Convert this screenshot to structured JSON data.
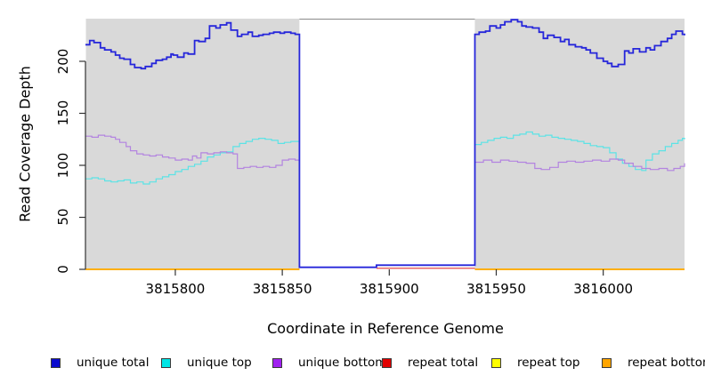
{
  "chart_data": {
    "type": "line",
    "subtype": "step-coverage",
    "title": "",
    "xlabel": "Coordinate in Reference Genome",
    "ylabel": "Read Coverage Depth",
    "xlim": [
      3815758,
      3816038
    ],
    "ylim": [
      0,
      241
    ],
    "xticks": [
      3815800,
      3815850,
      3815900,
      3815950,
      3816000
    ],
    "yticks": [
      0,
      50,
      100,
      150,
      200
    ],
    "grid": false,
    "legend_position": "bottom",
    "plot_background": "#D9D9D9",
    "no_data_region": {
      "start": 3815858,
      "end": 3815940,
      "fill": "#FFFFFF",
      "border": "#8A8A8A"
    },
    "axis_color": "#333333",
    "draw_order": [
      "repeat top",
      "repeat bottom",
      "unique top",
      "unique bottom",
      "unique total",
      "repeat total"
    ],
    "series": [
      {
        "name": "unique total",
        "color": "#2626DA",
        "legend_color": "#0A0ACD",
        "width": 1.8,
        "segments": [
          [
            [
              3815758,
              216
            ],
            [
              3815760,
              220
            ],
            [
              3815762,
              218
            ],
            [
              3815765,
              213
            ],
            [
              3815767,
              211
            ],
            [
              3815770,
              209
            ],
            [
              3815772,
              206
            ],
            [
              3815774,
              203
            ],
            [
              3815776,
              202
            ],
            [
              3815779,
              197
            ],
            [
              3815781,
              194
            ],
            [
              3815784,
              193
            ],
            [
              3815786,
              195
            ],
            [
              3815789,
              198
            ],
            [
              3815791,
              201
            ],
            [
              3815794,
              202
            ],
            [
              3815796,
              204
            ],
            [
              3815798,
              207
            ],
            [
              3815799,
              206
            ],
            [
              3815801,
              204
            ],
            [
              3815804,
              208
            ],
            [
              3815806,
              207
            ],
            [
              3815809,
              220
            ],
            [
              3815811,
              219
            ],
            [
              3815814,
              222
            ],
            [
              3815816,
              234
            ],
            [
              3815819,
              232
            ],
            [
              3815821,
              235
            ],
            [
              3815824,
              237
            ],
            [
              3815826,
              230
            ],
            [
              3815829,
              224
            ],
            [
              3815831,
              226
            ],
            [
              3815834,
              228
            ],
            [
              3815836,
              224
            ],
            [
              3815839,
              225
            ],
            [
              3815841,
              226
            ],
            [
              3815844,
              227
            ],
            [
              3815846,
              228
            ],
            [
              3815849,
              227
            ],
            [
              3815851,
              228
            ],
            [
              3815854,
              227
            ],
            [
              3815856,
              226
            ],
            [
              3815858,
              225
            ],
            [
              3815858,
              2
            ],
            [
              3815894,
              2
            ],
            [
              3815894,
              4
            ],
            [
              3815940,
              4
            ],
            [
              3815940,
              226
            ],
            [
              3815942,
              228
            ],
            [
              3815945,
              229
            ],
            [
              3815947,
              234
            ],
            [
              3815950,
              232
            ],
            [
              3815952,
              235
            ],
            [
              3815954,
              238
            ],
            [
              3815957,
              240
            ],
            [
              3815960,
              238
            ],
            [
              3815962,
              234
            ],
            [
              3815964,
              233
            ],
            [
              3815967,
              232
            ],
            [
              3815970,
              228
            ],
            [
              3815972,
              222
            ],
            [
              3815974,
              225
            ],
            [
              3815977,
              223
            ],
            [
              3815980,
              219
            ],
            [
              3815982,
              221
            ],
            [
              3815984,
              216
            ],
            [
              3815987,
              214
            ],
            [
              3815990,
              213
            ],
            [
              3815992,
              211
            ],
            [
              3815994,
              208
            ],
            [
              3815997,
              203
            ],
            [
              3816000,
              200
            ],
            [
              3816002,
              198
            ],
            [
              3816004,
              195
            ],
            [
              3816007,
              197
            ],
            [
              3816010,
              210
            ],
            [
              3816012,
              208
            ],
            [
              3816014,
              212
            ],
            [
              3816017,
              209
            ],
            [
              3816020,
              213
            ],
            [
              3816022,
              211
            ],
            [
              3816024,
              215
            ],
            [
              3816027,
              219
            ],
            [
              3816030,
              222
            ],
            [
              3816032,
              226
            ],
            [
              3816034,
              229
            ],
            [
              3816037,
              226
            ],
            [
              3816038,
              225
            ]
          ]
        ]
      },
      {
        "name": "unique top",
        "color": "#5CE3E6",
        "legend_color": "#00E5E5",
        "width": 1.2,
        "segments": [
          [
            [
              3815758,
              87
            ],
            [
              3815761,
              88
            ],
            [
              3815764,
              87
            ],
            [
              3815767,
              85
            ],
            [
              3815770,
              84
            ],
            [
              3815773,
              85
            ],
            [
              3815776,
              86
            ],
            [
              3815779,
              83
            ],
            [
              3815782,
              84
            ],
            [
              3815785,
              82
            ],
            [
              3815788,
              84
            ],
            [
              3815791,
              87
            ],
            [
              3815794,
              89
            ],
            [
              3815797,
              91
            ],
            [
              3815800,
              94
            ],
            [
              3815803,
              96
            ],
            [
              3815806,
              99
            ],
            [
              3815809,
              101
            ],
            [
              3815812,
              104
            ],
            [
              3815815,
              108
            ],
            [
              3815818,
              110
            ],
            [
              3815821,
              112
            ],
            [
              3815824,
              113
            ],
            [
              3815827,
              118
            ],
            [
              3815830,
              121
            ],
            [
              3815833,
              123
            ],
            [
              3815836,
              125
            ],
            [
              3815839,
              126
            ],
            [
              3815842,
              125
            ],
            [
              3815845,
              124
            ],
            [
              3815848,
              121
            ],
            [
              3815851,
              122
            ],
            [
              3815854,
              123
            ],
            [
              3815858,
              122
            ]
          ],
          [
            [
              3815940,
              120
            ],
            [
              3815943,
              122
            ],
            [
              3815946,
              124
            ],
            [
              3815949,
              126
            ],
            [
              3815952,
              127
            ],
            [
              3815955,
              126
            ],
            [
              3815958,
              129
            ],
            [
              3815961,
              130
            ],
            [
              3815964,
              132
            ],
            [
              3815967,
              130
            ],
            [
              3815970,
              128
            ],
            [
              3815973,
              129
            ],
            [
              3815976,
              127
            ],
            [
              3815979,
              126
            ],
            [
              3815982,
              125
            ],
            [
              3815985,
              124
            ],
            [
              3815988,
              123
            ],
            [
              3815991,
              121
            ],
            [
              3815994,
              119
            ],
            [
              3815997,
              118
            ],
            [
              3816000,
              117
            ],
            [
              3816003,
              112
            ],
            [
              3816006,
              106
            ],
            [
              3816009,
              102
            ],
            [
              3816012,
              99
            ],
            [
              3816015,
              96
            ],
            [
              3816018,
              95
            ],
            [
              3816020,
              105
            ],
            [
              3816023,
              111
            ],
            [
              3816026,
              114
            ],
            [
              3816029,
              118
            ],
            [
              3816032,
              121
            ],
            [
              3816035,
              124
            ],
            [
              3816037,
              126
            ],
            [
              3816038,
              125
            ]
          ]
        ]
      },
      {
        "name": "unique bottom",
        "color": "#B384E0",
        "legend_color": "#A020F0",
        "width": 1.2,
        "segments": [
          [
            [
              3815758,
              128
            ],
            [
              3815761,
              127
            ],
            [
              3815764,
              129
            ],
            [
              3815767,
              128
            ],
            [
              3815770,
              127
            ],
            [
              3815772,
              125
            ],
            [
              3815774,
              122
            ],
            [
              3815777,
              118
            ],
            [
              3815779,
              114
            ],
            [
              3815782,
              111
            ],
            [
              3815785,
              110
            ],
            [
              3815788,
              109
            ],
            [
              3815791,
              110
            ],
            [
              3815794,
              108
            ],
            [
              3815797,
              107
            ],
            [
              3815800,
              105
            ],
            [
              3815803,
              106
            ],
            [
              3815806,
              105
            ],
            [
              3815808,
              109
            ],
            [
              3815810,
              107
            ],
            [
              3815812,
              112
            ],
            [
              3815815,
              111
            ],
            [
              3815818,
              112
            ],
            [
              3815821,
              113
            ],
            [
              3815824,
              112
            ],
            [
              3815827,
              111
            ],
            [
              3815829,
              97
            ],
            [
              3815832,
              98
            ],
            [
              3815835,
              99
            ],
            [
              3815838,
              98
            ],
            [
              3815841,
              99
            ],
            [
              3815844,
              98
            ],
            [
              3815847,
              100
            ],
            [
              3815850,
              105
            ],
            [
              3815853,
              106
            ],
            [
              3815856,
              105
            ],
            [
              3815858,
              104
            ]
          ],
          [
            [
              3815940,
              103
            ],
            [
              3815944,
              105
            ],
            [
              3815948,
              103
            ],
            [
              3815952,
              105
            ],
            [
              3815956,
              104
            ],
            [
              3815960,
              103
            ],
            [
              3815964,
              102
            ],
            [
              3815968,
              97
            ],
            [
              3815971,
              96
            ],
            [
              3815975,
              98
            ],
            [
              3815979,
              103
            ],
            [
              3815983,
              104
            ],
            [
              3815987,
              103
            ],
            [
              3815991,
              104
            ],
            [
              3815995,
              105
            ],
            [
              3815999,
              104
            ],
            [
              3816003,
              106
            ],
            [
              3816007,
              105
            ],
            [
              3816010,
              102
            ],
            [
              3816014,
              99
            ],
            [
              3816018,
              97
            ],
            [
              3816022,
              96
            ],
            [
              3816026,
              97
            ],
            [
              3816030,
              95
            ],
            [
              3816033,
              97
            ],
            [
              3816036,
              99
            ],
            [
              3816038,
              102
            ]
          ]
        ]
      },
      {
        "name": "repeat total",
        "color": "#E03535",
        "legend_color": "#E00000",
        "width": 1.2,
        "segments": [
          [
            [
              3815894,
              1
            ],
            [
              3815940,
              1
            ]
          ]
        ]
      },
      {
        "name": "repeat top",
        "color": "#FFFF00",
        "legend_color": "#FFFF00",
        "width": 1.5,
        "segments": [
          [
            [
              3815758,
              0
            ],
            [
              3815858,
              0
            ]
          ],
          [
            [
              3815940,
              0
            ],
            [
              3816038,
              0
            ]
          ]
        ]
      },
      {
        "name": "repeat bottom",
        "color": "#FFA500",
        "legend_color": "#FFA500",
        "width": 1.8,
        "segments": [
          [
            [
              3815758,
              0
            ],
            [
              3815858,
              0
            ]
          ],
          [
            [
              3815940,
              0
            ],
            [
              3816038,
              0
            ]
          ]
        ]
      }
    ]
  }
}
